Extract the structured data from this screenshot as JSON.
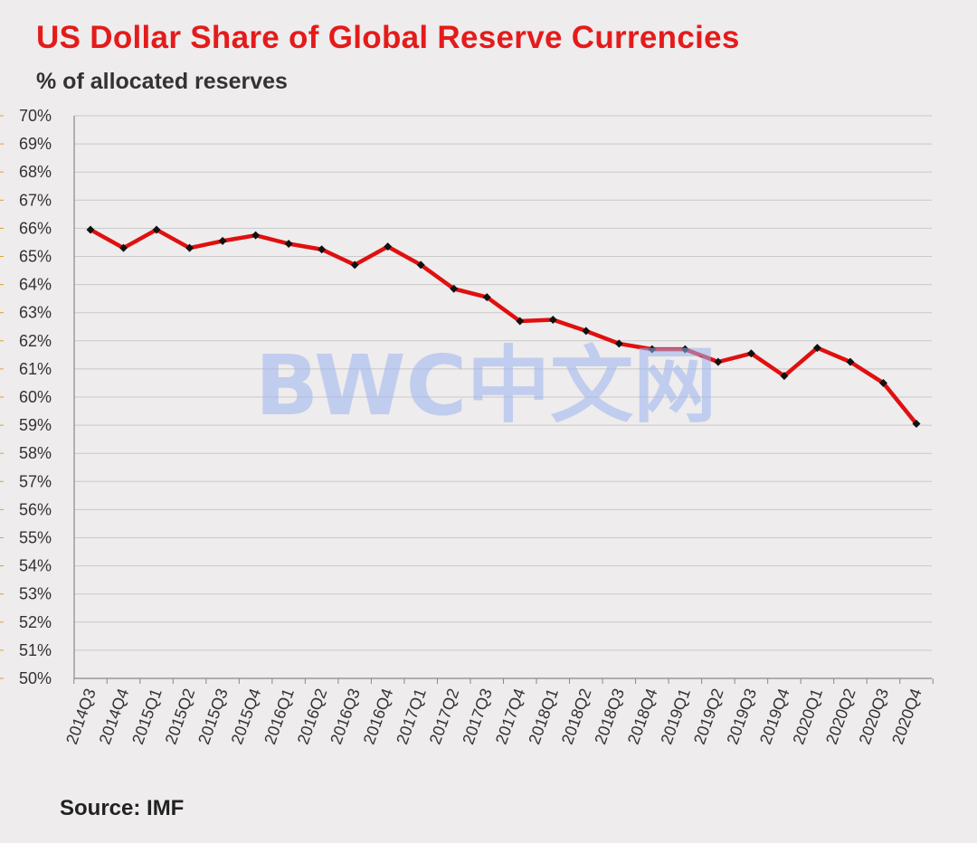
{
  "chart_data": {
    "type": "line",
    "title": "US Dollar Share of Global Reserve Currencies",
    "subtitle": "% of allocated reserves",
    "source": "Source: IMF",
    "xlabel": "",
    "ylabel": "",
    "ylim": [
      50,
      70
    ],
    "y_ticks": [
      "50%",
      "51%",
      "52%",
      "53%",
      "54%",
      "55%",
      "56%",
      "57%",
      "58%",
      "59%",
      "60%",
      "61%",
      "62%",
      "63%",
      "64%",
      "65%",
      "66%",
      "67%",
      "68%",
      "69%",
      "70%"
    ],
    "grid": true,
    "categories": [
      "2014Q3",
      "2014Q4",
      "2015Q1",
      "2015Q2",
      "2015Q3",
      "2015Q4",
      "2016Q1",
      "2016Q2",
      "2016Q3",
      "2016Q4",
      "2017Q1",
      "2017Q2",
      "2017Q3",
      "2017Q4",
      "2018Q1",
      "2018Q2",
      "2018Q3",
      "2018Q4",
      "2019Q1",
      "2019Q2",
      "2019Q3",
      "2019Q4",
      "2020Q1",
      "2020Q2",
      "2020Q3",
      "2020Q4"
    ],
    "series": [
      {
        "values": [
          65.95,
          65.3,
          65.95,
          65.3,
          65.55,
          65.75,
          65.45,
          65.25,
          64.7,
          65.35,
          64.7,
          63.85,
          63.55,
          62.7,
          62.75,
          62.35,
          61.9,
          61.7,
          61.7,
          61.25,
          61.55,
          60.75,
          61.75,
          61.25,
          60.5,
          59.05
        ],
        "color": "#e01010",
        "marker_color": "#111111"
      }
    ],
    "watermark": "BWC中文网"
  }
}
